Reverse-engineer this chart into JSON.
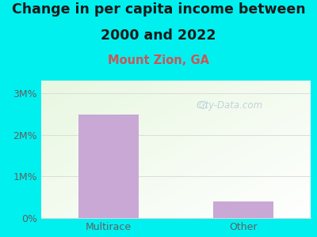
{
  "title_line1": "Change in per capita income between",
  "title_line2": "2000 and 2022",
  "subtitle": "Mount Zion, GA",
  "categories": [
    "Multirace",
    "Other"
  ],
  "values": [
    2.48,
    0.4
  ],
  "bar_color": "#c9a8d5",
  "background_color": "#00f0f0",
  "title_color": "#1a1a1a",
  "subtitle_color": "#cc5555",
  "tick_color": "#606060",
  "ytick_labels": [
    "0%",
    "1M%",
    "2M%",
    "3M%"
  ],
  "ytick_vals": [
    0,
    1,
    2,
    3
  ],
  "ylim": [
    0,
    3.3
  ],
  "watermark": "City-Data.com",
  "title_fontsize": 12.5,
  "subtitle_fontsize": 10.5,
  "tick_fontsize": 9,
  "grid_color": "#d8d8d8",
  "plot_bg_colors": [
    "#e8f5e0",
    "#f8fff5"
  ],
  "bar_width": 0.45
}
